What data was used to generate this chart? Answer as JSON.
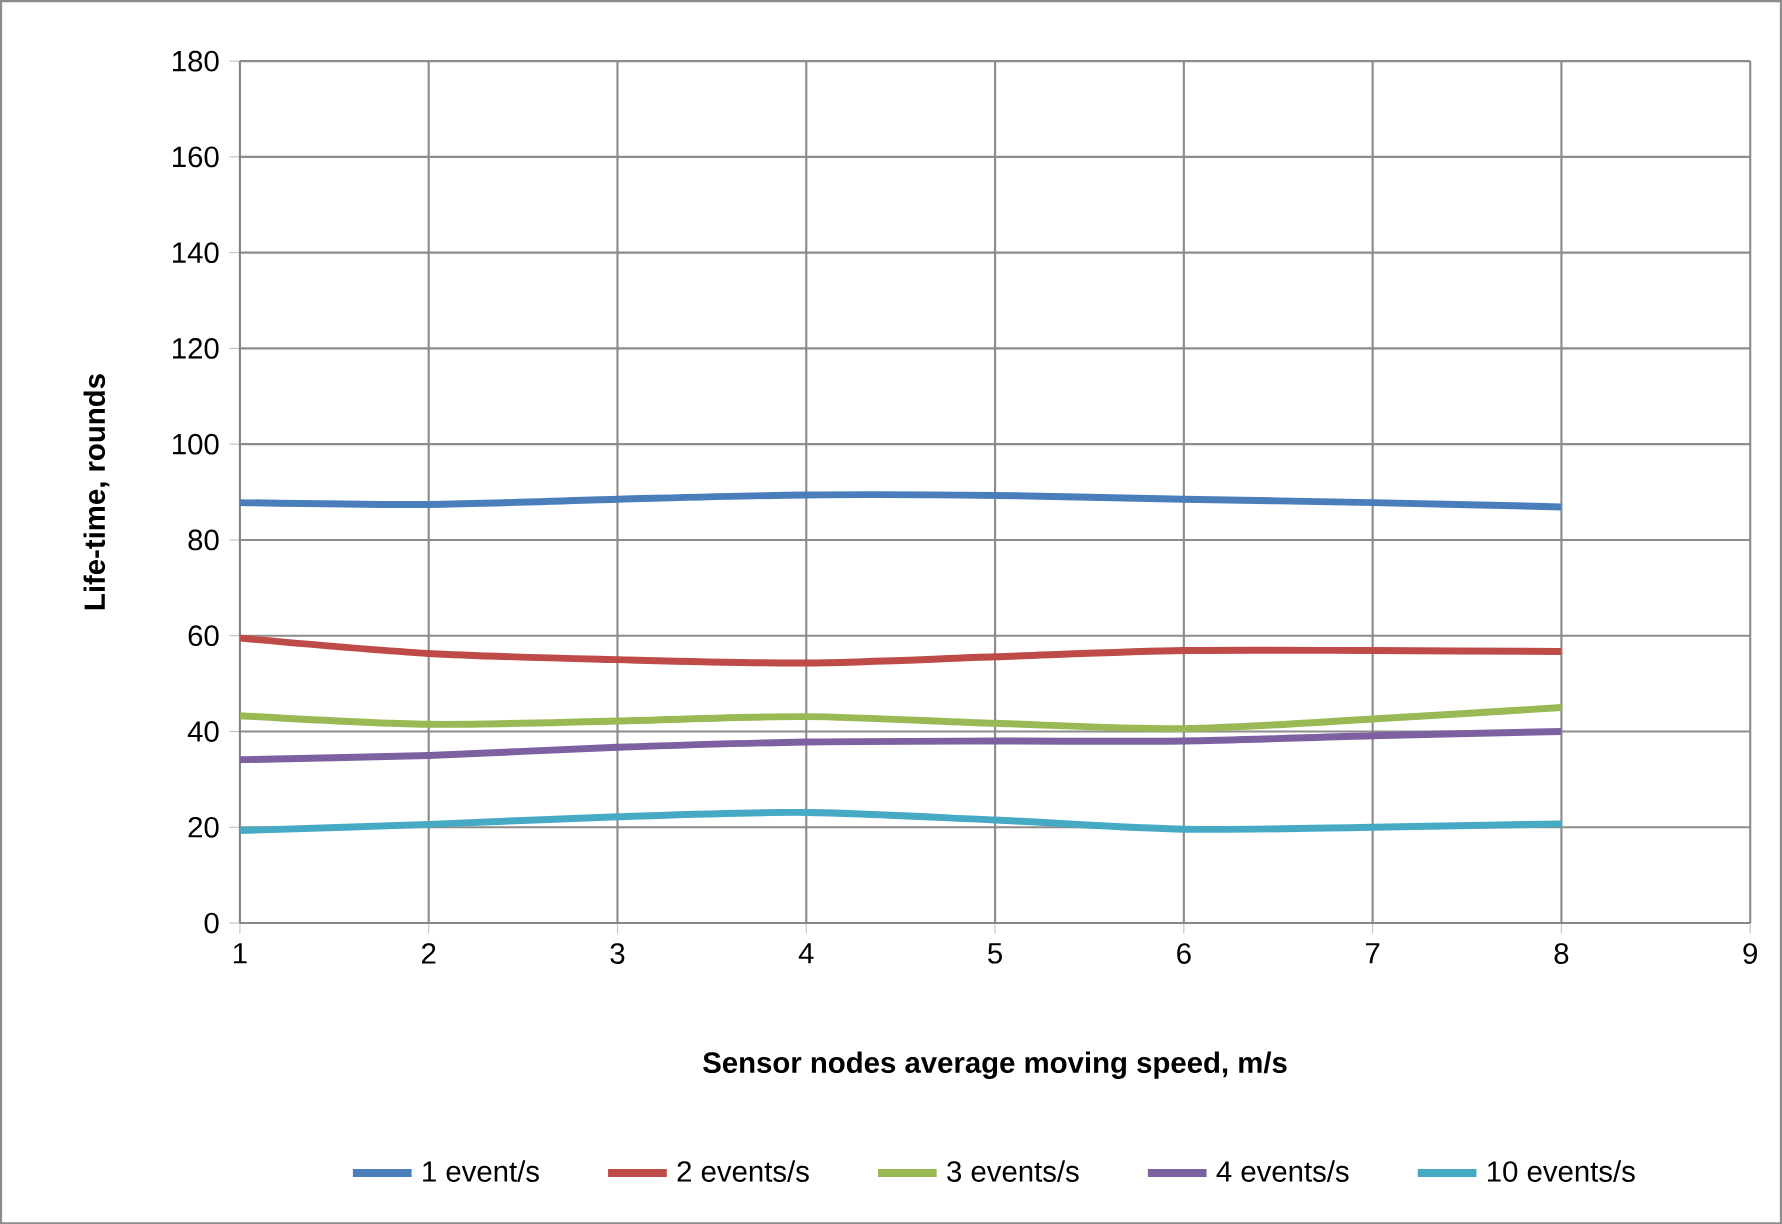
{
  "chart_data": {
    "type": "line",
    "xlabel": "Sensor nodes average moving speed, m/s",
    "ylabel": "Life-time, rounds",
    "x": [
      1,
      2,
      3,
      4,
      5,
      6,
      7,
      8
    ],
    "series": [
      {
        "name": "1 event/s",
        "color": "#4a7ebb",
        "values": [
          87.8,
          87.4,
          88.5,
          89.4,
          89.3,
          88.5,
          87.8,
          86.9
        ]
      },
      {
        "name": "2 events/s",
        "color": "#be4b48",
        "values": [
          59.5,
          56.3,
          55,
          54.3,
          55.6,
          56.9,
          56.9,
          56.7
        ]
      },
      {
        "name": "3 events/s",
        "color": "#98b954",
        "values": [
          43.3,
          41.5,
          42.2,
          43.1,
          41.7,
          40.6,
          42.6,
          45
        ]
      },
      {
        "name": "4 events/s",
        "color": "#7d60a0",
        "values": [
          34.1,
          35,
          36.7,
          37.8,
          38,
          38,
          39.1,
          40
        ]
      },
      {
        "name": "10 events/s",
        "color": "#46aac5",
        "values": [
          19.3,
          20.6,
          22.2,
          23.1,
          21.5,
          19.6,
          20,
          20.7
        ]
      }
    ],
    "xlim": [
      1,
      9
    ],
    "xticks": [
      1,
      2,
      3,
      4,
      5,
      6,
      7,
      8,
      9
    ],
    "ylim": [
      0,
      180
    ],
    "yticks": [
      0,
      20,
      40,
      60,
      80,
      100,
      120,
      140,
      160,
      180
    ],
    "grid": true,
    "legend": "bottom",
    "marker": "none",
    "line_style": "solid"
  }
}
